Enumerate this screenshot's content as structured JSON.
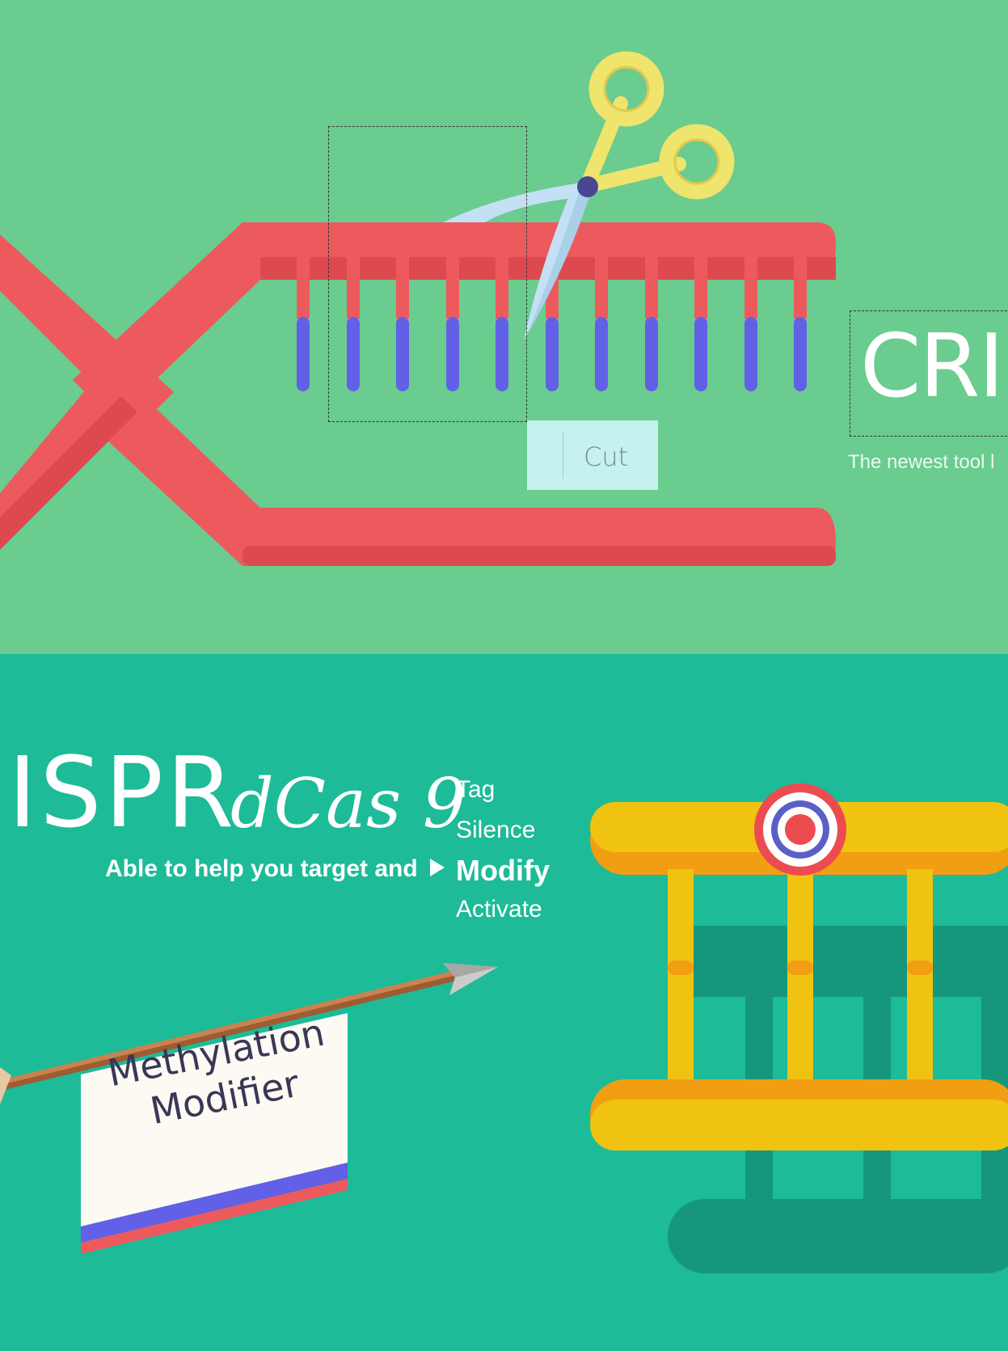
{
  "canvas": {
    "top_bg": "#6acc8f",
    "bottom_bg": "#1dbb98"
  },
  "dna": {
    "strand_color": "#ed5a5e",
    "strand_shade": "#dc4a4f",
    "base_color": "#6160e6"
  },
  "scissors": {
    "handle_color": "#efe46c",
    "blade_color": "#c3e0f4",
    "pivot_color": "#4a4690"
  },
  "tooltip": {
    "label": "Cut",
    "icon": "cursor-arrow-icon"
  },
  "hero": {
    "title_fragment_top": "CRI",
    "tagline": "The newest tool l",
    "title_fragment_bottom": "ISPR",
    "variant": "dCas 9",
    "subline": "Able to help you target and",
    "functions": [
      "Tag",
      "Silence",
      "Modify",
      "Activate"
    ],
    "selected_function": "Modify"
  },
  "arrow_flag": {
    "label_line1": "Methylation",
    "label_line2": "Modifier",
    "shaft_color": "#b86e3f",
    "flag_color": "#fdf9f3",
    "stripe_colors": [
      "#6160e6",
      "#ed5a5e"
    ]
  },
  "ladder": {
    "rail_color": "#f0c311",
    "rail_shade": "#f29e13",
    "shadow_color": "#16977b",
    "target_icon": "bullseye-icon",
    "target_colors": [
      "#ec4b4f",
      "#ffffff",
      "#5a5fc8"
    ]
  }
}
